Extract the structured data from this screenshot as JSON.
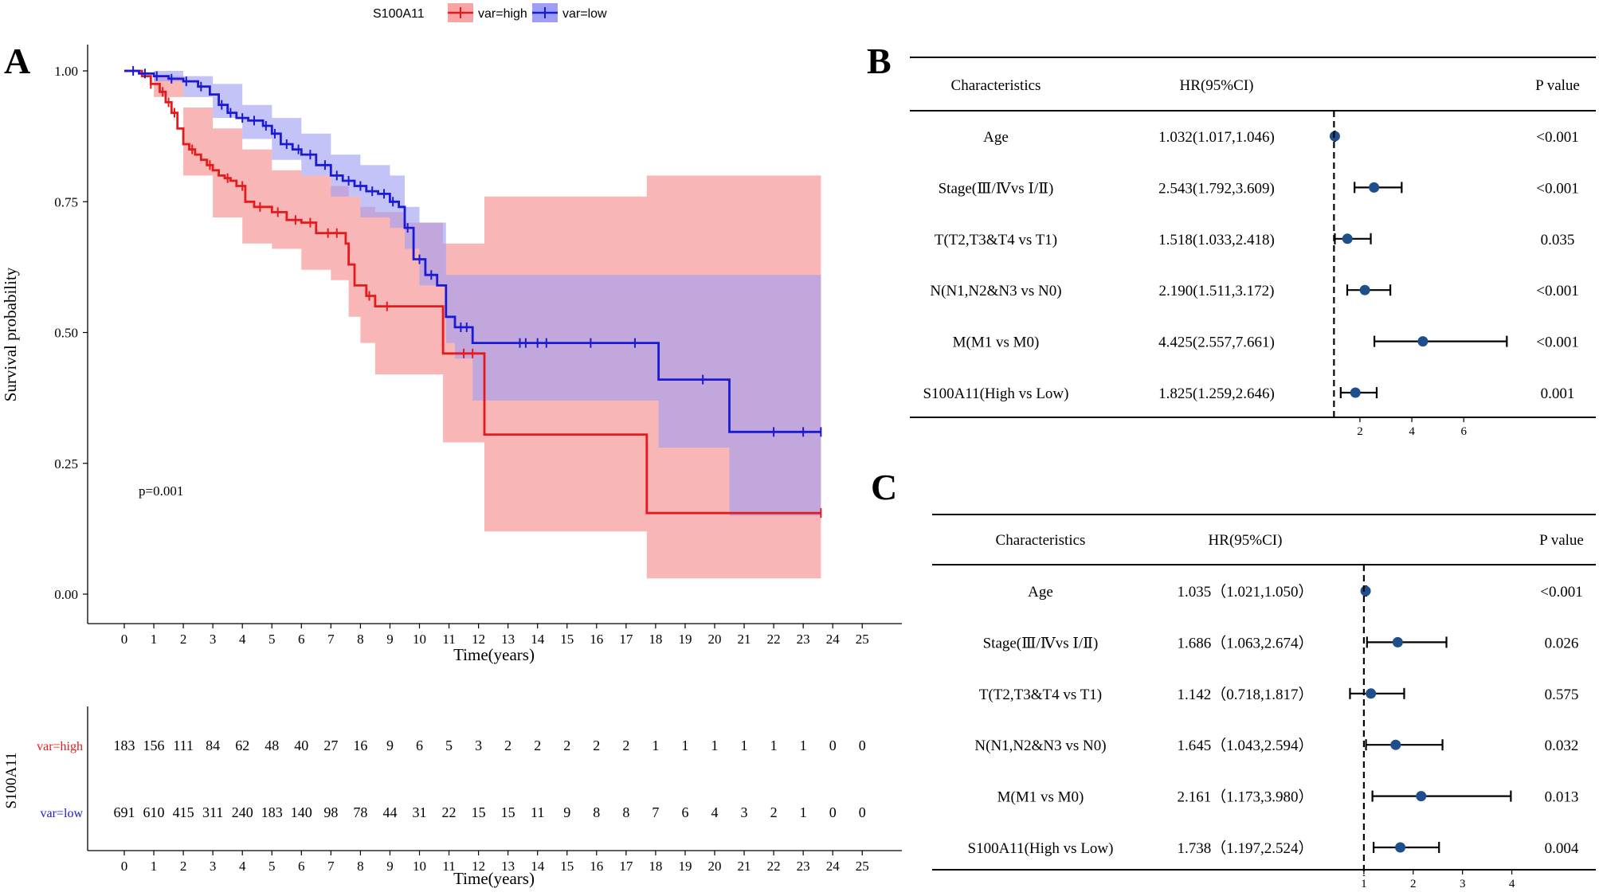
{
  "chart_data": [
    {
      "panel_label": "A",
      "type": "line",
      "subtype": "kaplan-meier",
      "legend": {
        "title": "S100A11",
        "entries": [
          {
            "name": "var=high",
            "color": "#e41a1c",
            "ci_color": "#f8a4a4"
          },
          {
            "name": "var=low",
            "color": "#1a1ad4",
            "ci_color": "#9e9ef4"
          }
        ],
        "position": "top"
      },
      "xlabel": "Time(years)",
      "ylabel": "Survival probability",
      "xlim": [
        0,
        25
      ],
      "ylim": [
        0,
        1
      ],
      "x_ticks": [
        "0",
        "1",
        "2",
        "3",
        "4",
        "5",
        "6",
        "7",
        "8",
        "9",
        "10",
        "11",
        "12",
        "13",
        "14",
        "15",
        "16",
        "17",
        "18",
        "19",
        "20",
        "21",
        "22",
        "23",
        "24",
        "25"
      ],
      "y_ticks": [
        "0.00",
        "0.25",
        "0.50",
        "0.75",
        "1.00"
      ],
      "annotation": "p=0.001",
      "series": [
        {
          "name": "var=high",
          "steps": [
            [
              0,
              1.0
            ],
            [
              0.6,
              0.99
            ],
            [
              0.9,
              0.975
            ],
            [
              1.2,
              0.96
            ],
            [
              1.4,
              0.94
            ],
            [
              1.6,
              0.92
            ],
            [
              1.8,
              0.89
            ],
            [
              2.0,
              0.86
            ],
            [
              2.2,
              0.85
            ],
            [
              2.4,
              0.84
            ],
            [
              2.6,
              0.83
            ],
            [
              2.8,
              0.82
            ],
            [
              3.0,
              0.81
            ],
            [
              3.2,
              0.8
            ],
            [
              3.4,
              0.795
            ],
            [
              3.6,
              0.79
            ],
            [
              3.8,
              0.78
            ],
            [
              4.1,
              0.75
            ],
            [
              4.4,
              0.74
            ],
            [
              5.0,
              0.73
            ],
            [
              5.5,
              0.715
            ],
            [
              6.0,
              0.71
            ],
            [
              6.5,
              0.69
            ],
            [
              7.5,
              0.67
            ],
            [
              7.6,
              0.63
            ],
            [
              7.8,
              0.59
            ],
            [
              8.2,
              0.57
            ],
            [
              8.5,
              0.55
            ],
            [
              9.5,
              0.55
            ],
            [
              10.8,
              0.46
            ],
            [
              11.9,
              0.46
            ],
            [
              12.2,
              0.305
            ],
            [
              17.7,
              0.155
            ],
            [
              23.6,
              0.155
            ]
          ],
          "ci_lower": [
            [
              0,
              1.0
            ],
            [
              1,
              0.95
            ],
            [
              2,
              0.8
            ],
            [
              3,
              0.72
            ],
            [
              4,
              0.67
            ],
            [
              5,
              0.66
            ],
            [
              6,
              0.62
            ],
            [
              7,
              0.6
            ],
            [
              7.6,
              0.53
            ],
            [
              8.0,
              0.48
            ],
            [
              8.5,
              0.42
            ],
            [
              10.8,
              0.29
            ],
            [
              12.2,
              0.12
            ],
            [
              17.7,
              0.03
            ],
            [
              23.6,
              0.03
            ]
          ],
          "ci_upper": [
            [
              0,
              1.0
            ],
            [
              1,
              0.99
            ],
            [
              2,
              0.93
            ],
            [
              3,
              0.89
            ],
            [
              4,
              0.85
            ],
            [
              5,
              0.81
            ],
            [
              6,
              0.8
            ],
            [
              7,
              0.78
            ],
            [
              7.6,
              0.76
            ],
            [
              8.0,
              0.74
            ],
            [
              8.5,
              0.73
            ],
            [
              9.5,
              0.71
            ],
            [
              10.8,
              0.67
            ],
            [
              12.2,
              0.76
            ],
            [
              17.7,
              0.8
            ],
            [
              23.6,
              0.8
            ]
          ],
          "censor_times": [
            0.9,
            1.3,
            1.5,
            1.7,
            2.3,
            2.9,
            3.5,
            4.0,
            4.6,
            5.2,
            5.8,
            6.3,
            6.9,
            7.2,
            8.3,
            8.9,
            11.5,
            11.8,
            23.6
          ]
        },
        {
          "name": "var=low",
          "steps": [
            [
              0,
              1.0
            ],
            [
              0.5,
              0.995
            ],
            [
              1.0,
              0.99
            ],
            [
              1.5,
              0.985
            ],
            [
              2.0,
              0.98
            ],
            [
              2.5,
              0.97
            ],
            [
              2.9,
              0.955
            ],
            [
              3.2,
              0.935
            ],
            [
              3.5,
              0.92
            ],
            [
              3.8,
              0.91
            ],
            [
              4.2,
              0.905
            ],
            [
              4.7,
              0.895
            ],
            [
              5.0,
              0.88
            ],
            [
              5.3,
              0.86
            ],
            [
              5.7,
              0.85
            ],
            [
              6.0,
              0.84
            ],
            [
              6.5,
              0.82
            ],
            [
              7.0,
              0.8
            ],
            [
              7.4,
              0.79
            ],
            [
              7.8,
              0.78
            ],
            [
              8.2,
              0.77
            ],
            [
              8.6,
              0.765
            ],
            [
              9.0,
              0.75
            ],
            [
              9.3,
              0.74
            ],
            [
              9.5,
              0.7
            ],
            [
              9.8,
              0.64
            ],
            [
              10.2,
              0.61
            ],
            [
              10.6,
              0.59
            ],
            [
              10.9,
              0.53
            ],
            [
              11.2,
              0.51
            ],
            [
              11.8,
              0.48
            ],
            [
              18.1,
              0.41
            ],
            [
              20.5,
              0.31
            ],
            [
              23.6,
              0.31
            ]
          ],
          "ci_lower": [
            [
              0,
              1.0
            ],
            [
              1,
              0.98
            ],
            [
              2,
              0.95
            ],
            [
              3,
              0.91
            ],
            [
              4,
              0.87
            ],
            [
              5,
              0.83
            ],
            [
              6,
              0.8
            ],
            [
              7,
              0.76
            ],
            [
              8,
              0.72
            ],
            [
              9,
              0.7
            ],
            [
              9.5,
              0.66
            ],
            [
              10,
              0.59
            ],
            [
              10.9,
              0.48
            ],
            [
              11.2,
              0.45
            ],
            [
              11.8,
              0.37
            ],
            [
              18.1,
              0.28
            ],
            [
              20.5,
              0.15
            ],
            [
              23.6,
              0.15
            ]
          ],
          "ci_upper": [
            [
              0,
              1.0
            ],
            [
              1,
              1.0
            ],
            [
              2,
              0.99
            ],
            [
              3,
              0.975
            ],
            [
              4,
              0.935
            ],
            [
              5,
              0.91
            ],
            [
              6,
              0.88
            ],
            [
              7,
              0.84
            ],
            [
              8,
              0.82
            ],
            [
              9,
              0.8
            ],
            [
              9.5,
              0.74
            ],
            [
              10,
              0.71
            ],
            [
              10.9,
              0.61
            ],
            [
              11.2,
              0.61
            ],
            [
              23.6,
              0.61
            ]
          ],
          "censor_times": [
            0.3,
            0.7,
            1.1,
            1.6,
            2.1,
            2.6,
            3.3,
            3.6,
            4.0,
            4.4,
            4.8,
            5.1,
            5.5,
            5.9,
            6.3,
            6.8,
            7.2,
            7.6,
            8.0,
            8.4,
            8.8,
            9.1,
            9.6,
            10.0,
            10.4,
            11.4,
            11.6,
            13.4,
            13.6,
            14.0,
            14.3,
            15.8,
            17.3,
            19.6,
            22.0,
            23.0,
            23.6
          ]
        }
      ],
      "risk_table": {
        "title": "S100A11",
        "xlabel": "Time(years)",
        "rows": [
          {
            "name": "var=high",
            "counts": [
              "183",
              "156",
              "111",
              "84",
              "62",
              "48",
              "40",
              "27",
              "16",
              "9",
              "6",
              "5",
              "3",
              "2",
              "2",
              "2",
              "2",
              "2",
              "1",
              "1",
              "1",
              "1",
              "1",
              "1",
              "0",
              "0"
            ]
          },
          {
            "name": "var=low",
            "counts": [
              "691",
              "610",
              "415",
              "311",
              "240",
              "183",
              "140",
              "98",
              "78",
              "44",
              "31",
              "22",
              "15",
              "15",
              "11",
              "9",
              "8",
              "8",
              "7",
              "6",
              "4",
              "3",
              "2",
              "1",
              "0",
              "0"
            ]
          }
        ]
      }
    },
    {
      "panel_label": "B",
      "type": "scatter",
      "subtype": "forest",
      "headers": {
        "characteristics": "Characteristics",
        "hr": "HR(95%CI)",
        "p": "P value"
      },
      "reference_line": 1,
      "xlim": [
        0.5,
        7.8
      ],
      "x_ticks": [
        "2",
        "4",
        "6"
      ],
      "rows": [
        {
          "label": "Age",
          "hr_text": "1.032(1.017,1.046)",
          "p": "<0.001",
          "hr": 1.032,
          "lo": 1.017,
          "hi": 1.046
        },
        {
          "label": "Stage(Ⅲ/Ⅳvs Ⅰ/Ⅱ)",
          "hr_text": "2.543(1.792,3.609)",
          "p": "<0.001",
          "hr": 2.543,
          "lo": 1.792,
          "hi": 3.609
        },
        {
          "label": "T(T2,T3&T4 vs T1)",
          "hr_text": "1.518(1.033,2.418)",
          "p": "0.035",
          "hr": 1.518,
          "lo": 1.033,
          "hi": 2.418
        },
        {
          "label": "N(N1,N2&N3 vs N0)",
          "hr_text": "2.190(1.511,3.172)",
          "p": "<0.001",
          "hr": 2.19,
          "lo": 1.511,
          "hi": 3.172
        },
        {
          "label": "M(M1 vs M0)",
          "hr_text": "4.425(2.557,7.661)",
          "p": "<0.001",
          "hr": 4.425,
          "lo": 2.557,
          "hi": 7.661
        },
        {
          "label": "S100A11(High vs Low)",
          "hr_text": "1.825(1.259,2.646)",
          "p": "0.001",
          "hr": 1.825,
          "lo": 1.259,
          "hi": 2.646
        }
      ]
    },
    {
      "panel_label": "C",
      "type": "scatter",
      "subtype": "forest",
      "headers": {
        "characteristics": "Characteristics",
        "hr": "HR(95%CI)",
        "p": "P value"
      },
      "reference_line": 1,
      "xlim": [
        0.5,
        4.5
      ],
      "x_ticks": [
        "1",
        "2",
        "3",
        "4"
      ],
      "rows": [
        {
          "label": "Age",
          "hr_text": "1.035（1.021,1.050）",
          "p": "<0.001",
          "hr": 1.035,
          "lo": 1.021,
          "hi": 1.05
        },
        {
          "label": "Stage(Ⅲ/Ⅳvs Ⅰ/Ⅱ)",
          "hr_text": "1.686（1.063,2.674）",
          "p": "0.026",
          "hr": 1.686,
          "lo": 1.063,
          "hi": 2.674
        },
        {
          "label": "T(T2,T3&T4 vs T1)",
          "hr_text": "1.142（0.718,1.817）",
          "p": "0.575",
          "hr": 1.142,
          "lo": 0.718,
          "hi": 1.817
        },
        {
          "label": "N(N1,N2&N3 vs N0)",
          "hr_text": "1.645（1.043,2.594）",
          "p": "0.032",
          "hr": 1.645,
          "lo": 1.043,
          "hi": 2.594
        },
        {
          "label": "M(M1 vs M0)",
          "hr_text": "2.161（1.173,3.980）",
          "p": "0.013",
          "hr": 2.161,
          "lo": 1.173,
          "hi": 3.98
        },
        {
          "label": "S100A11(High vs Low)",
          "hr_text": "1.738（1.197,2.524）",
          "p": "0.004",
          "hr": 1.738,
          "lo": 1.197,
          "hi": 2.524
        }
      ]
    }
  ]
}
